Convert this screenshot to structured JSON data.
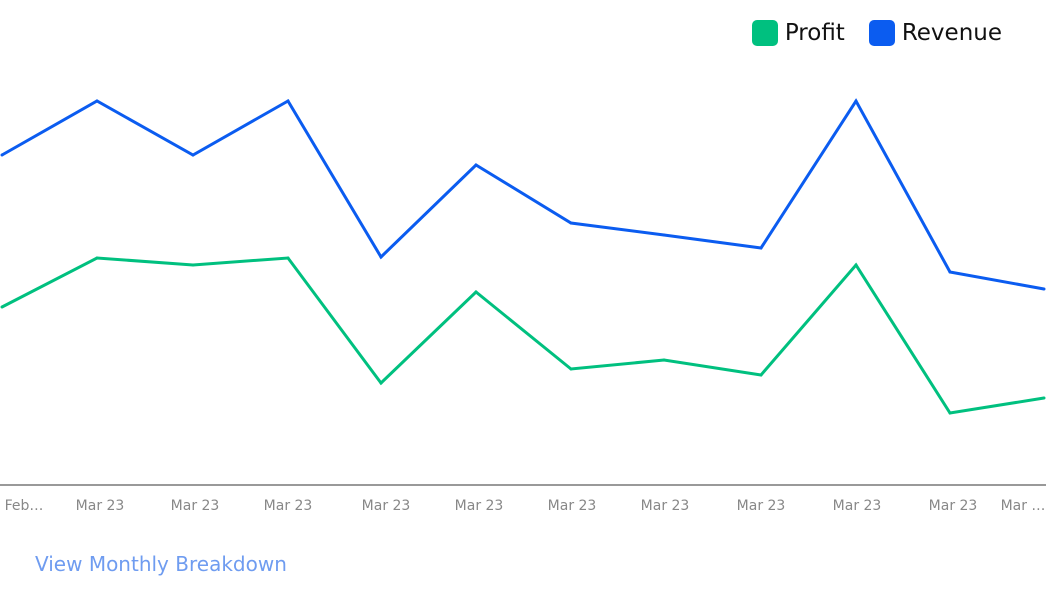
{
  "chart_data": {
    "type": "line",
    "categories": [
      "Feb…",
      "Mar 23",
      "Mar 23",
      "Mar 23",
      "Mar 23",
      "Mar 23",
      "Mar 23",
      "Mar 23",
      "Mar 23",
      "Mar 23",
      "Mar 23",
      "Mar …"
    ],
    "series": [
      {
        "name": "Profit",
        "color": "#00c07f",
        "values": [
          178,
          227,
          220,
          227,
          102,
          193,
          116,
          125,
          110,
          220,
          72,
          87
        ]
      },
      {
        "name": "Revenue",
        "color": "#0b5cf0",
        "values": [
          330,
          384,
          330,
          384,
          228,
          320,
          262,
          250,
          237,
          384,
          213,
          196
        ]
      }
    ],
    "title": "",
    "xlabel": "",
    "ylabel": "",
    "ylim": [
      0,
      420
    ],
    "grid": false,
    "legend_position": "top-right"
  },
  "footer": {
    "link_label": "View Monthly Breakdown"
  }
}
